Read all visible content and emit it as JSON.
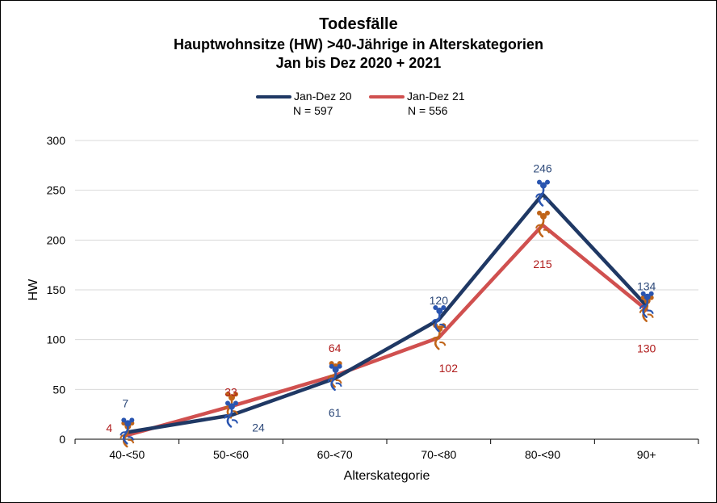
{
  "chart_data": {
    "type": "line",
    "title": "Todesfälle",
    "subtitle_1": "Hauptwohnsitze (HW) >40-Jährige in Alterskategorien",
    "subtitle_2": "Jan bis Dez 2020 + 2021",
    "xlabel": "Alterskategorie",
    "ylabel": "HW",
    "ylim": [
      0,
      300
    ],
    "yticks": [
      0,
      50,
      100,
      150,
      200,
      250,
      300
    ],
    "grid": true,
    "legend_position": "top-center",
    "categories": [
      "40-<50",
      "50-<60",
      "60-<70",
      "70-<80",
      "80-<90",
      "90+"
    ],
    "series": [
      {
        "name": "Jan-Dez 20",
        "note": "N = 597",
        "color": "#1f3864",
        "label_color": "#2e4a7a",
        "marker_color": "#2a55b0",
        "values": [
          7,
          24,
          61,
          120,
          246,
          134
        ]
      },
      {
        "name": "Jan-Dez 21",
        "note": "N = 556",
        "color": "#d0504f",
        "label_color": "#b01c1c",
        "marker_color": "#c06418",
        "values": [
          4,
          33,
          64,
          102,
          215,
          130
        ]
      }
    ]
  }
}
